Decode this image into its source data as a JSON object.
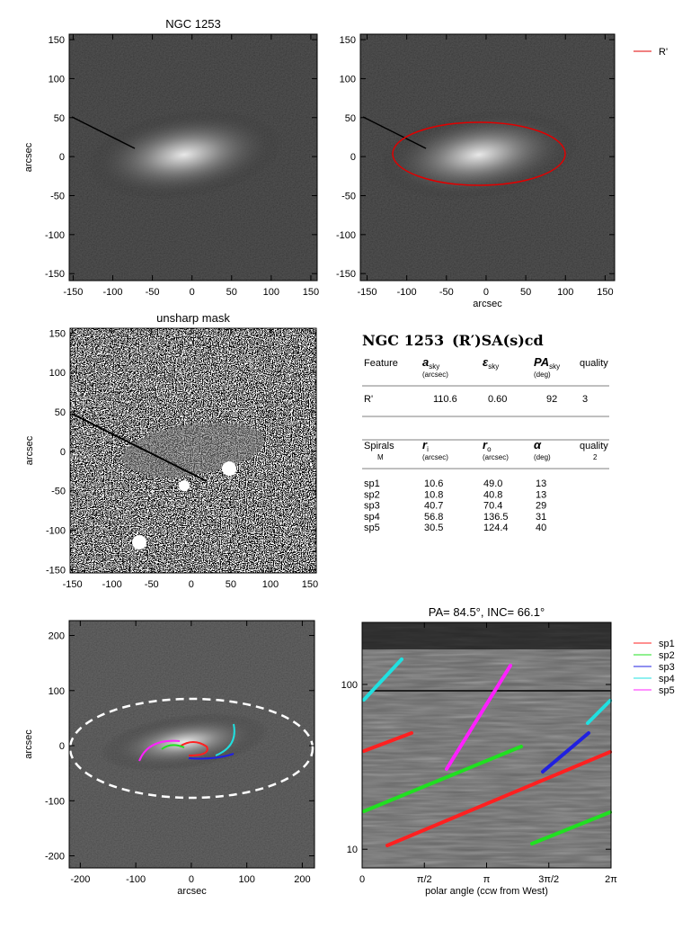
{
  "panels": [
    {
      "title": "NGC 1253",
      "ylabel": "arcsec",
      "xlim": [
        -155,
        158
      ],
      "ylim": [
        -159,
        157
      ],
      "xticks": [
        -150,
        -100,
        -50,
        0,
        50,
        100,
        150
      ],
      "yticks": [
        -150,
        -100,
        -50,
        0,
        50,
        100,
        150
      ]
    },
    {
      "xlabel": "arcsec",
      "xlim": [
        -158.5,
        162
      ],
      "ylim": [
        -159,
        157
      ],
      "xticks": [
        -150,
        -100,
        -50,
        0,
        50,
        100,
        150
      ],
      "yticks": [
        -150,
        -100,
        -50,
        0,
        50,
        100,
        150
      ],
      "legend": [
        {
          "name": "R'",
          "color": "#e00000"
        }
      ]
    },
    {
      "title": "unsharp mask",
      "ylabel": "arcsec",
      "xlim": [
        -153,
        158
      ],
      "ylim": [
        -154,
        156
      ],
      "xticks": [
        -150,
        -100,
        -50,
        0,
        50,
        100,
        150
      ],
      "yticks": [
        -150,
        -100,
        -50,
        0,
        50,
        100,
        150
      ]
    },
    {
      "xlabel": "arcsec",
      "ylabel": "arcsec",
      "xlim": [
        -220,
        222
      ],
      "ylim": [
        -222,
        227
      ],
      "xticks": [
        -200,
        -100,
        0,
        100,
        200
      ],
      "yticks": [
        -200,
        -100,
        0,
        100,
        200
      ]
    },
    {
      "title": "PA= 84.5°, INC= 66.1°",
      "xlabel": "polar angle (ccw from West)",
      "log_y": true,
      "xlim": [
        0,
        6.2832
      ],
      "ylim": [
        7.7,
        238
      ],
      "xticks": [
        0,
        {
          "value": 1.5708,
          "label": "π/2"
        },
        {
          "value": 3.1416,
          "label": "π"
        },
        {
          "value": 4.7124,
          "label": "3π/2"
        },
        {
          "value": 6.2832,
          "label": "2π"
        }
      ],
      "yticks": [
        10,
        100
      ],
      "legend": [
        {
          "name": "sp1",
          "color": "#ff2020"
        },
        {
          "name": "sp2",
          "color": "#20e020"
        },
        {
          "name": "sp3",
          "color": "#2020e0"
        },
        {
          "name": "sp4",
          "color": "#20e0e0"
        },
        {
          "name": "sp5",
          "color": "#ff20ff"
        }
      ]
    }
  ],
  "table": {
    "galaxy": "NGC 1253",
    "morphology": "(R′)SA(s)cd",
    "features": {
      "header": [
        {
          "text": "Feature"
        },
        {
          "main": "a",
          "sub": "sky",
          "unit": "(arcsec)"
        },
        {
          "main": "ε",
          "sub": "sky"
        },
        {
          "main": "PA",
          "sub": "sky",
          "unit": "(deg)"
        },
        {
          "text": "quality"
        }
      ],
      "rows": [
        [
          "R'",
          "110.6",
          "0.60",
          "92",
          "3"
        ]
      ]
    },
    "spirals": {
      "header": [
        {
          "text": "Spirals",
          "unit": "M"
        },
        {
          "main": "r",
          "sub": "i",
          "unit": "(arcsec)"
        },
        {
          "main": "r",
          "sub": "o",
          "unit": "(arcsec)"
        },
        {
          "main": "α",
          "unit": "(deg)"
        },
        {
          "text": "quality",
          "unit": "2"
        }
      ],
      "rows": [
        [
          "sp1",
          "10.6",
          "49.0",
          "13"
        ],
        [
          "sp2",
          "10.8",
          "40.8",
          "13"
        ],
        [
          "sp3",
          "40.7",
          "70.4",
          "29"
        ],
        [
          "sp4",
          "56.8",
          "136.5",
          "31"
        ],
        [
          "sp5",
          "30.5",
          "124.4",
          "40"
        ]
      ]
    }
  }
}
